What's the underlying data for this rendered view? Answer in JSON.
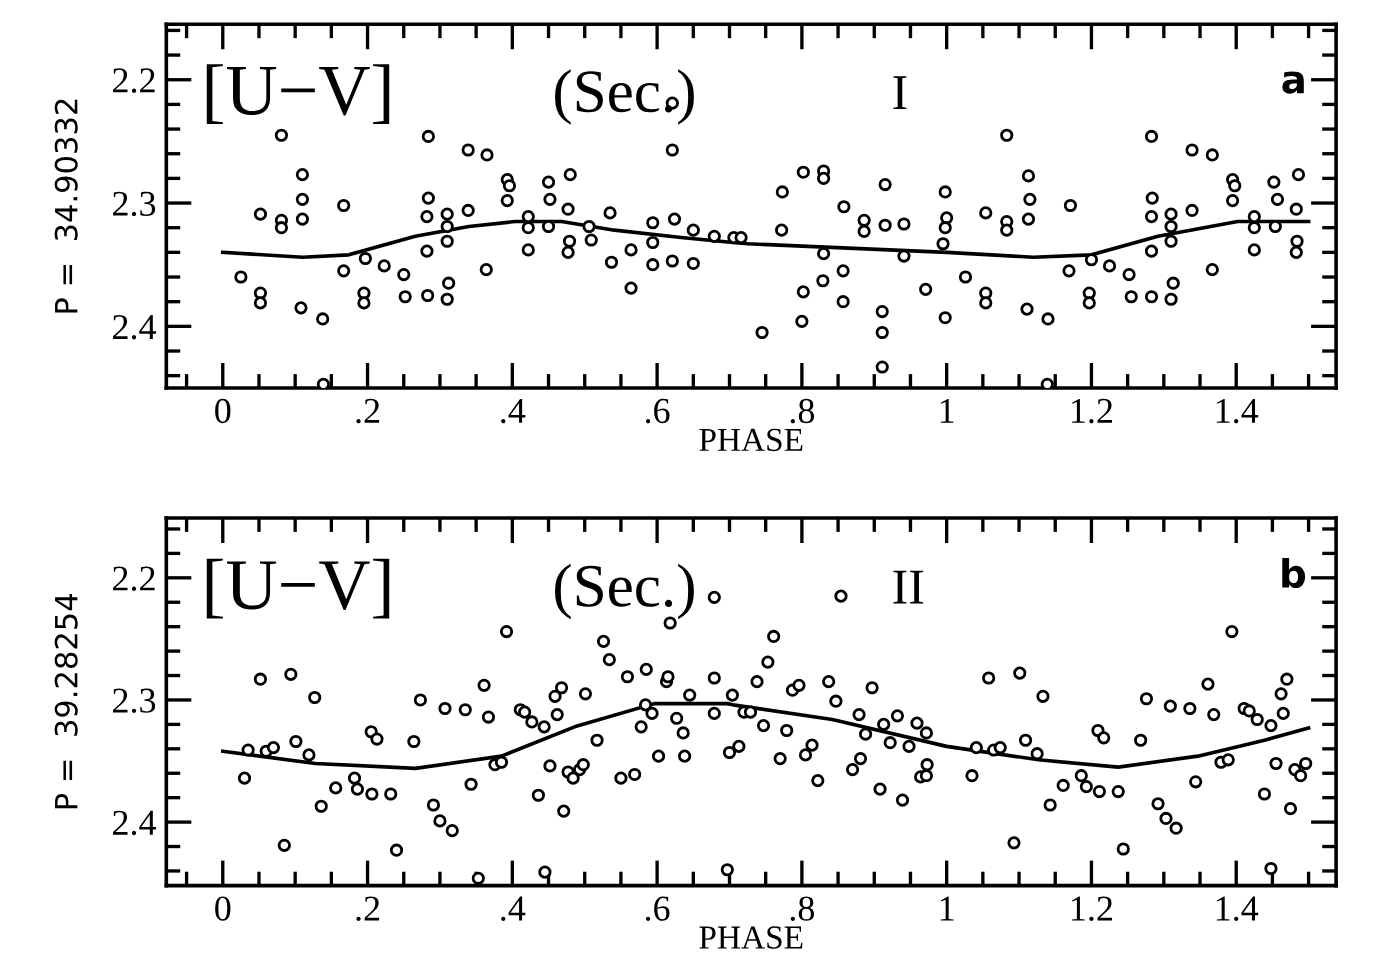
{
  "chart_data": [
    {
      "type": "scatter",
      "xlabel": "PHASE",
      "ylabel": "P =  34.90332",
      "annotations": [
        "[U−V]",
        "(Sec.)",
        "I",
        "a"
      ],
      "xlim": [
        -0.078,
        1.538
      ],
      "ylim": [
        2.45,
        2.155
      ],
      "xticks": [
        0,
        {
          "value": 0.2,
          "label": ".2"
        },
        {
          "value": 0.4,
          "label": ".4"
        },
        {
          "value": 0.6,
          "label": ".6"
        },
        {
          "value": 0.8,
          "label": ".8"
        },
        1,
        1.2,
        1.4,
        {
          "value": -0.05,
          "label": null
        },
        {
          "value": 0.05,
          "label": null
        },
        {
          "value": 0.1,
          "label": null
        },
        {
          "value": 0.15,
          "label": null
        },
        {
          "value": 0.25,
          "label": null
        },
        {
          "value": 0.3,
          "label": null
        },
        {
          "value": 0.35,
          "label": null
        },
        {
          "value": 0.45,
          "label": null
        },
        {
          "value": 0.5,
          "label": null
        },
        {
          "value": 0.55,
          "label": null
        },
        {
          "value": 0.65,
          "label": null
        },
        {
          "value": 0.7,
          "label": null
        },
        {
          "value": 0.75,
          "label": null
        },
        {
          "value": 0.85,
          "label": null
        },
        {
          "value": 0.9,
          "label": null
        },
        {
          "value": 0.95,
          "label": null
        },
        {
          "value": 1.05,
          "label": null
        },
        {
          "value": 1.1,
          "label": null
        },
        {
          "value": 1.15,
          "label": null
        },
        {
          "value": 1.25,
          "label": null
        },
        {
          "value": 1.3,
          "label": null
        },
        {
          "value": 1.35,
          "label": null
        },
        {
          "value": 1.45,
          "label": null
        },
        {
          "value": 1.5,
          "label": null
        }
      ],
      "yticks": [
        2.2,
        2.3,
        2.4,
        {
          "value": 2.16,
          "label": null
        },
        {
          "value": 2.18,
          "label": null
        },
        {
          "value": 2.22,
          "label": null
        },
        {
          "value": 2.24,
          "label": null
        },
        {
          "value": 2.26,
          "label": null
        },
        {
          "value": 2.28,
          "label": null
        },
        {
          "value": 2.32,
          "label": null
        },
        {
          "value": 2.34,
          "label": null
        },
        {
          "value": 2.36,
          "label": null
        },
        {
          "value": 2.38,
          "label": null
        },
        {
          "value": 2.42,
          "label": null
        },
        {
          "value": 2.44,
          "label": null
        }
      ],
      "grid": false,
      "legend": false,
      "series": [
        {
          "color": "#000000",
          "marker": "circle",
          "x": [
            0.081,
            0.11,
            0.11,
            0.11,
            0.052,
            0.081,
            0.081,
            0.025,
            0.052,
            0.052,
            0.108,
            0.138,
            0.139,
            0.167,
            0.167,
            0.197,
            0.195,
            0.195,
            0.223,
            0.25,
            0.252,
            0.283,
            0.284,
            0.284,
            0.282,
            0.282,
            0.31,
            0.31,
            0.31,
            0.312,
            0.31,
            0.339,
            0.339,
            0.365,
            0.364,
            0.393,
            0.396,
            0.393,
            0.422,
            0.422,
            0.422,
            0.45,
            0.452,
            0.45,
            0.48,
            0.477,
            0.479,
            0.477,
            0.506,
            0.509,
            0.535,
            0.537,
            0.564,
            0.564,
            0.594,
            0.594,
            0.594,
            0.621,
            0.621,
            0.624,
            0.621,
            0.65,
            0.65,
            0.679,
            0.706,
            0.716,
            0.745,
            0.773,
            0.772,
            0.802,
            0.802,
            0.8,
            0.83,
            0.83,
            0.83,
            0.829,
            0.858,
            0.857,
            0.857,
            0.886,
            0.886,
            0.915,
            0.915,
            0.911,
            0.911,
            0.911,
            0.941,
            0.941,
            0.971,
            0.998,
            1.0,
            0.998,
            0.995,
            0.998,
            1.054,
            1.026,
            1.054,
            1.054,
            1.083,
            1.083,
            1.083,
            1.113,
            1.115,
            1.113,
            1.111,
            1.14,
            1.139,
            1.171,
            1.169,
            1.2,
            1.197,
            1.197,
            1.225,
            1.252,
            1.255,
            1.283,
            1.284,
            1.283,
            1.283,
            1.283,
            1.31,
            1.31,
            1.31,
            1.313,
            1.31,
            1.339,
            1.339,
            1.367,
            1.367,
            1.395,
            1.398,
            1.395,
            1.425,
            1.425,
            1.425,
            1.452,
            1.457,
            1.454,
            1.486,
            1.483,
            1.484,
            1.483
          ],
          "values": [
            2.245,
            2.277,
            2.297,
            2.313,
            2.309,
            2.314,
            2.32,
            2.36,
            2.373,
            2.381,
            2.385,
            2.394,
            2.447,
            2.302,
            2.355,
            2.345,
            2.373,
            2.381,
            2.351,
            2.358,
            2.376,
            2.375,
            2.246,
            2.296,
            2.311,
            2.339,
            2.309,
            2.319,
            2.331,
            2.365,
            2.378,
            2.257,
            2.306,
            2.261,
            2.354,
            2.281,
            2.286,
            2.298,
            2.311,
            2.32,
            2.338,
            2.283,
            2.297,
            2.319,
            2.277,
            2.305,
            2.331,
            2.34,
            2.319,
            2.33,
            2.308,
            2.348,
            2.338,
            2.369,
            2.316,
            2.332,
            2.35,
            2.219,
            2.257,
            2.313,
            2.347,
            2.322,
            2.349,
            2.327,
            2.328,
            2.328,
            2.405,
            2.291,
            2.322,
            2.275,
            2.372,
            2.396,
            2.274,
            2.28,
            2.341,
            2.363,
            2.303,
            2.355,
            2.38,
            2.314,
            2.323,
            2.285,
            2.318,
            2.388,
            2.405,
            2.433,
            2.317,
            2.343,
            2.37,
            2.291,
            2.312,
            2.32,
            2.333,
            2.393,
            2.308,
            2.36,
            2.373,
            2.381,
            2.315,
            2.322,
            2.245,
            2.278,
            2.297,
            2.313,
            2.386,
            2.394,
            2.447,
            2.302,
            2.355,
            2.346,
            2.373,
            2.381,
            2.351,
            2.358,
            2.376,
            2.246,
            2.296,
            2.311,
            2.339,
            2.376,
            2.309,
            2.319,
            2.331,
            2.365,
            2.378,
            2.257,
            2.306,
            2.261,
            2.354,
            2.281,
            2.286,
            2.298,
            2.311,
            2.32,
            2.338,
            2.283,
            2.297,
            2.319,
            2.277,
            2.305,
            2.331,
            2.34
          ]
        },
        {
          "type": "line",
          "color": "#000000",
          "line_style": "solid",
          "marker": "none",
          "x": [
            0,
            0.11,
            0.174,
            0.266,
            0.34,
            0.404,
            0.468,
            0.541,
            0.633,
            0.705,
            0.725,
            1.0,
            1.12,
            1.2,
            1.292,
            1.402,
            1.5
          ],
          "values": [
            2.34,
            2.344,
            2.342,
            2.327,
            2.319,
            2.315,
            2.315,
            2.322,
            2.328,
            2.332,
            2.333,
            2.34,
            2.344,
            2.342,
            2.327,
            2.315,
            2.315
          ]
        }
      ]
    },
    {
      "type": "scatter",
      "xlabel": "PHASE",
      "ylabel": "P =  39.28254",
      "annotations": [
        "[U−V]",
        "(Sec.)",
        "II",
        "b"
      ],
      "xlim": [
        -0.078,
        1.538
      ],
      "ylim": [
        2.452,
        2.151
      ],
      "xticks": [
        0,
        {
          "value": 0.2,
          "label": ".2"
        },
        {
          "value": 0.4,
          "label": ".4"
        },
        {
          "value": 0.6,
          "label": ".6"
        },
        {
          "value": 0.8,
          "label": ".8"
        },
        1,
        1.2,
        1.4,
        {
          "value": -0.05,
          "label": null
        },
        {
          "value": 0.05,
          "label": null
        },
        {
          "value": 0.1,
          "label": null
        },
        {
          "value": 0.15,
          "label": null
        },
        {
          "value": 0.25,
          "label": null
        },
        {
          "value": 0.3,
          "label": null
        },
        {
          "value": 0.35,
          "label": null
        },
        {
          "value": 0.45,
          "label": null
        },
        {
          "value": 0.5,
          "label": null
        },
        {
          "value": 0.55,
          "label": null
        },
        {
          "value": 0.65,
          "label": null
        },
        {
          "value": 0.7,
          "label": null
        },
        {
          "value": 0.75,
          "label": null
        },
        {
          "value": 0.85,
          "label": null
        },
        {
          "value": 0.9,
          "label": null
        },
        {
          "value": 0.95,
          "label": null
        },
        {
          "value": 1.05,
          "label": null
        },
        {
          "value": 1.1,
          "label": null
        },
        {
          "value": 1.15,
          "label": null
        },
        {
          "value": 1.25,
          "label": null
        },
        {
          "value": 1.3,
          "label": null
        },
        {
          "value": 1.35,
          "label": null
        },
        {
          "value": 1.45,
          "label": null
        },
        {
          "value": 1.5,
          "label": null
        }
      ],
      "yticks": [
        2.2,
        2.3,
        2.4,
        {
          "value": 2.16,
          "label": null
        },
        {
          "value": 2.18,
          "label": null
        },
        {
          "value": 2.22,
          "label": null
        },
        {
          "value": 2.24,
          "label": null
        },
        {
          "value": 2.26,
          "label": null
        },
        {
          "value": 2.28,
          "label": null
        },
        {
          "value": 2.32,
          "label": null
        },
        {
          "value": 2.34,
          "label": null
        },
        {
          "value": 2.36,
          "label": null
        },
        {
          "value": 2.38,
          "label": null
        },
        {
          "value": 2.42,
          "label": null
        },
        {
          "value": 2.44,
          "label": null
        }
      ],
      "grid": false,
      "legend": false,
      "series": [
        {
          "color": "#000000",
          "marker": "circle",
          "x": [
            0.03,
            0.035,
            0.052,
            0.06,
            0.07,
            0.085,
            0.094,
            0.101,
            0.119,
            0.127,
            0.136,
            0.156,
            0.182,
            0.186,
            0.205,
            0.213,
            0.206,
            0.232,
            0.24,
            0.264,
            0.273,
            0.291,
            0.3,
            0.307,
            0.317,
            0.335,
            0.343,
            0.353,
            0.361,
            0.367,
            0.376,
            0.385,
            0.392,
            0.411,
            0.417,
            0.427,
            0.436,
            0.444,
            0.445,
            0.452,
            0.459,
            0.468,
            0.462,
            0.471,
            0.477,
            0.484,
            0.493,
            0.498,
            0.501,
            0.517,
            0.526,
            0.534,
            0.55,
            0.569,
            0.559,
            0.578,
            0.585,
            0.584,
            0.593,
            0.602,
            0.613,
            0.615,
            0.618,
            0.627,
            0.636,
            0.638,
            0.645,
            0.679,
            0.679,
            0.679,
            0.697,
            0.704,
            0.7,
            0.713,
            0.72,
            0.729,
            0.738,
            0.747,
            0.753,
            0.761,
            0.77,
            0.779,
            0.787,
            0.796,
            0.805,
            0.814,
            0.822,
            0.837,
            0.847,
            0.854,
            0.87,
            0.881,
            0.879,
            0.888,
            0.897,
            0.908,
            0.913,
            0.922,
            0.932,
            0.939,
            0.948,
            0.959,
            0.964,
            0.972,
            0.973,
            0.972,
            1.035,
            1.041,
            1.058,
            1.065,
            1.074,
            1.093,
            1.101,
            1.109,
            1.125,
            1.133,
            1.143,
            1.161,
            1.186,
            1.193,
            1.209,
            1.217,
            1.211,
            1.237,
            1.244,
            1.268,
            1.276,
            1.292,
            1.303,
            1.309,
            1.317,
            1.336,
            1.344,
            1.361,
            1.369,
            1.379,
            1.389,
            1.394,
            1.411,
            1.418,
            1.429,
            1.439,
            1.448,
            1.448,
            1.455,
            1.462,
            1.465,
            1.47,
            1.475,
            1.481,
            1.489,
            1.496
          ],
          "values": [
            2.364,
            2.341,
            2.283,
            2.342,
            2.339,
            2.419,
            2.279,
            2.334,
            2.345,
            2.298,
            2.387,
            2.372,
            2.364,
            2.373,
            2.326,
            2.332,
            2.377,
            2.377,
            2.423,
            2.334,
            2.3,
            2.386,
            2.399,
            2.307,
            2.407,
            2.308,
            2.369,
            2.446,
            2.288,
            2.314,
            2.353,
            2.351,
            2.244,
            2.308,
            2.31,
            2.318,
            2.378,
            2.322,
            2.441,
            2.354,
            2.297,
            2.29,
            2.312,
            2.391,
            2.359,
            2.364,
            2.357,
            2.353,
            2.295,
            2.333,
            2.252,
            2.267,
            2.364,
            2.361,
            2.281,
            2.322,
            2.275,
            2.304,
            2.311,
            2.346,
            2.285,
            2.281,
            2.237,
            2.315,
            2.327,
            2.346,
            2.296,
            2.216,
            2.282,
            2.311,
            2.439,
            2.296,
            2.343,
            2.338,
            2.31,
            2.31,
            2.285,
            2.321,
            2.269,
            2.248,
            2.348,
            2.325,
            2.292,
            2.288,
            2.345,
            2.337,
            2.366,
            2.285,
            2.301,
            2.215,
            2.357,
            2.348,
            2.312,
            2.328,
            2.29,
            2.373,
            2.32,
            2.335,
            2.313,
            2.382,
            2.338,
            2.319,
            2.363,
            2.362,
            2.353,
            2.327,
            2.362,
            2.339,
            2.282,
            2.341,
            2.339,
            2.417,
            2.278,
            2.333,
            2.344,
            2.297,
            2.386,
            2.37,
            2.362,
            2.371,
            2.325,
            2.331,
            2.375,
            2.375,
            2.422,
            2.333,
            2.299,
            2.385,
            2.397,
            2.305,
            2.405,
            2.307,
            2.367,
            2.287,
            2.312,
            2.351,
            2.349,
            2.244,
            2.307,
            2.309,
            2.316,
            2.377,
            2.321,
            2.438,
            2.352,
            2.295,
            2.311,
            2.283,
            2.389,
            2.357,
            2.362,
            2.352
          ]
        },
        {
          "type": "line",
          "color": "#000000",
          "line_style": "solid",
          "marker": "none",
          "x": [
            0,
            0.128,
            0.266,
            0.385,
            0.486,
            0.596,
            0.697,
            0.705,
            0.842,
            1.0,
            1.127,
            1.237,
            1.347,
            1.439,
            1.5
          ],
          "values": [
            2.342,
            2.352,
            2.356,
            2.346,
            2.322,
            2.303,
            2.303,
            2.304,
            2.316,
            2.338,
            2.349,
            2.355,
            2.346,
            2.333,
            2.323
          ]
        }
      ]
    }
  ]
}
